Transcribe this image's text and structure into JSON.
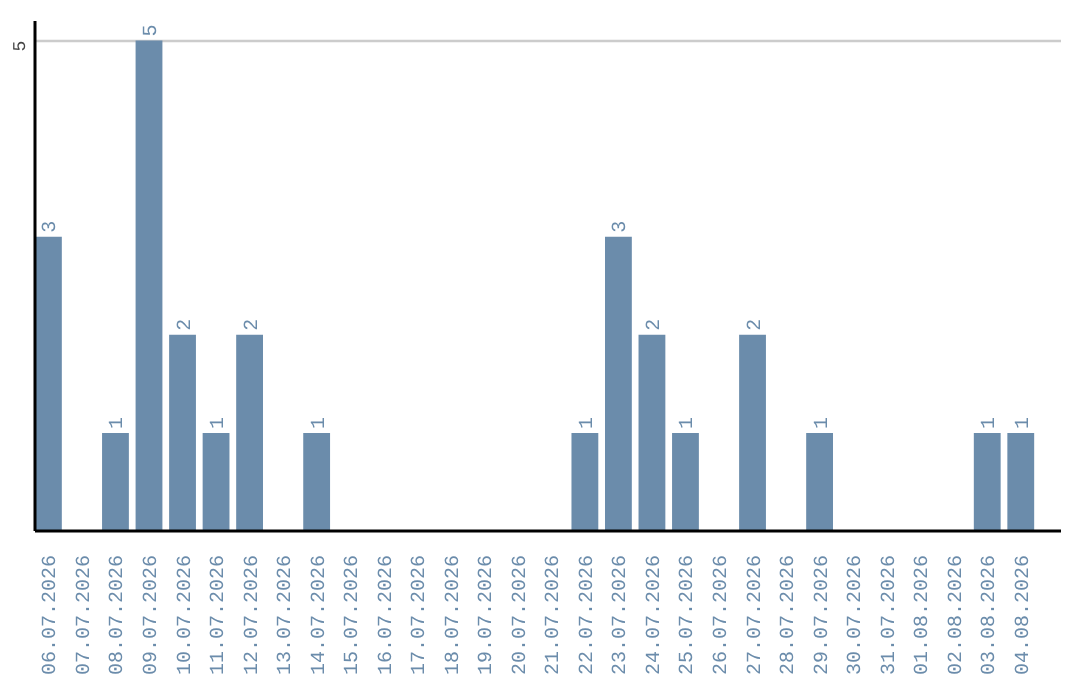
{
  "chart_data": {
    "type": "bar",
    "categories": [
      "06.07.2026",
      "07.07.2026",
      "08.07.2026",
      "09.07.2026",
      "10.07.2026",
      "11.07.2026",
      "12.07.2026",
      "13.07.2026",
      "14.07.2026",
      "15.07.2026",
      "16.07.2026",
      "17.07.2026",
      "18.07.2026",
      "19.07.2026",
      "20.07.2026",
      "21.07.2026",
      "22.07.2026",
      "23.07.2026",
      "24.07.2026",
      "25.07.2026",
      "26.07.2026",
      "27.07.2026",
      "28.07.2026",
      "29.07.2026",
      "30.07.2026",
      "31.07.2026",
      "01.08.2026",
      "02.08.2026",
      "03.08.2026",
      "04.08.2026"
    ],
    "values": [
      3,
      0,
      1,
      5,
      2,
      1,
      2,
      0,
      1,
      0,
      0,
      0,
      0,
      0,
      0,
      0,
      1,
      3,
      2,
      1,
      0,
      2,
      0,
      1,
      0,
      0,
      0,
      0,
      1,
      1
    ],
    "value_labels": [
      "3",
      null,
      "1",
      "5",
      "2",
      "1",
      "2",
      null,
      "1",
      null,
      null,
      null,
      null,
      null,
      null,
      null,
      "1",
      "3",
      "2",
      "1",
      null,
      "2",
      null,
      "1",
      null,
      null,
      null,
      null,
      "1",
      "1"
    ],
    "color": "#6b8cab",
    "ylim": [
      0,
      5.2
    ],
    "yticks": [
      5
    ],
    "grid": "y"
  }
}
